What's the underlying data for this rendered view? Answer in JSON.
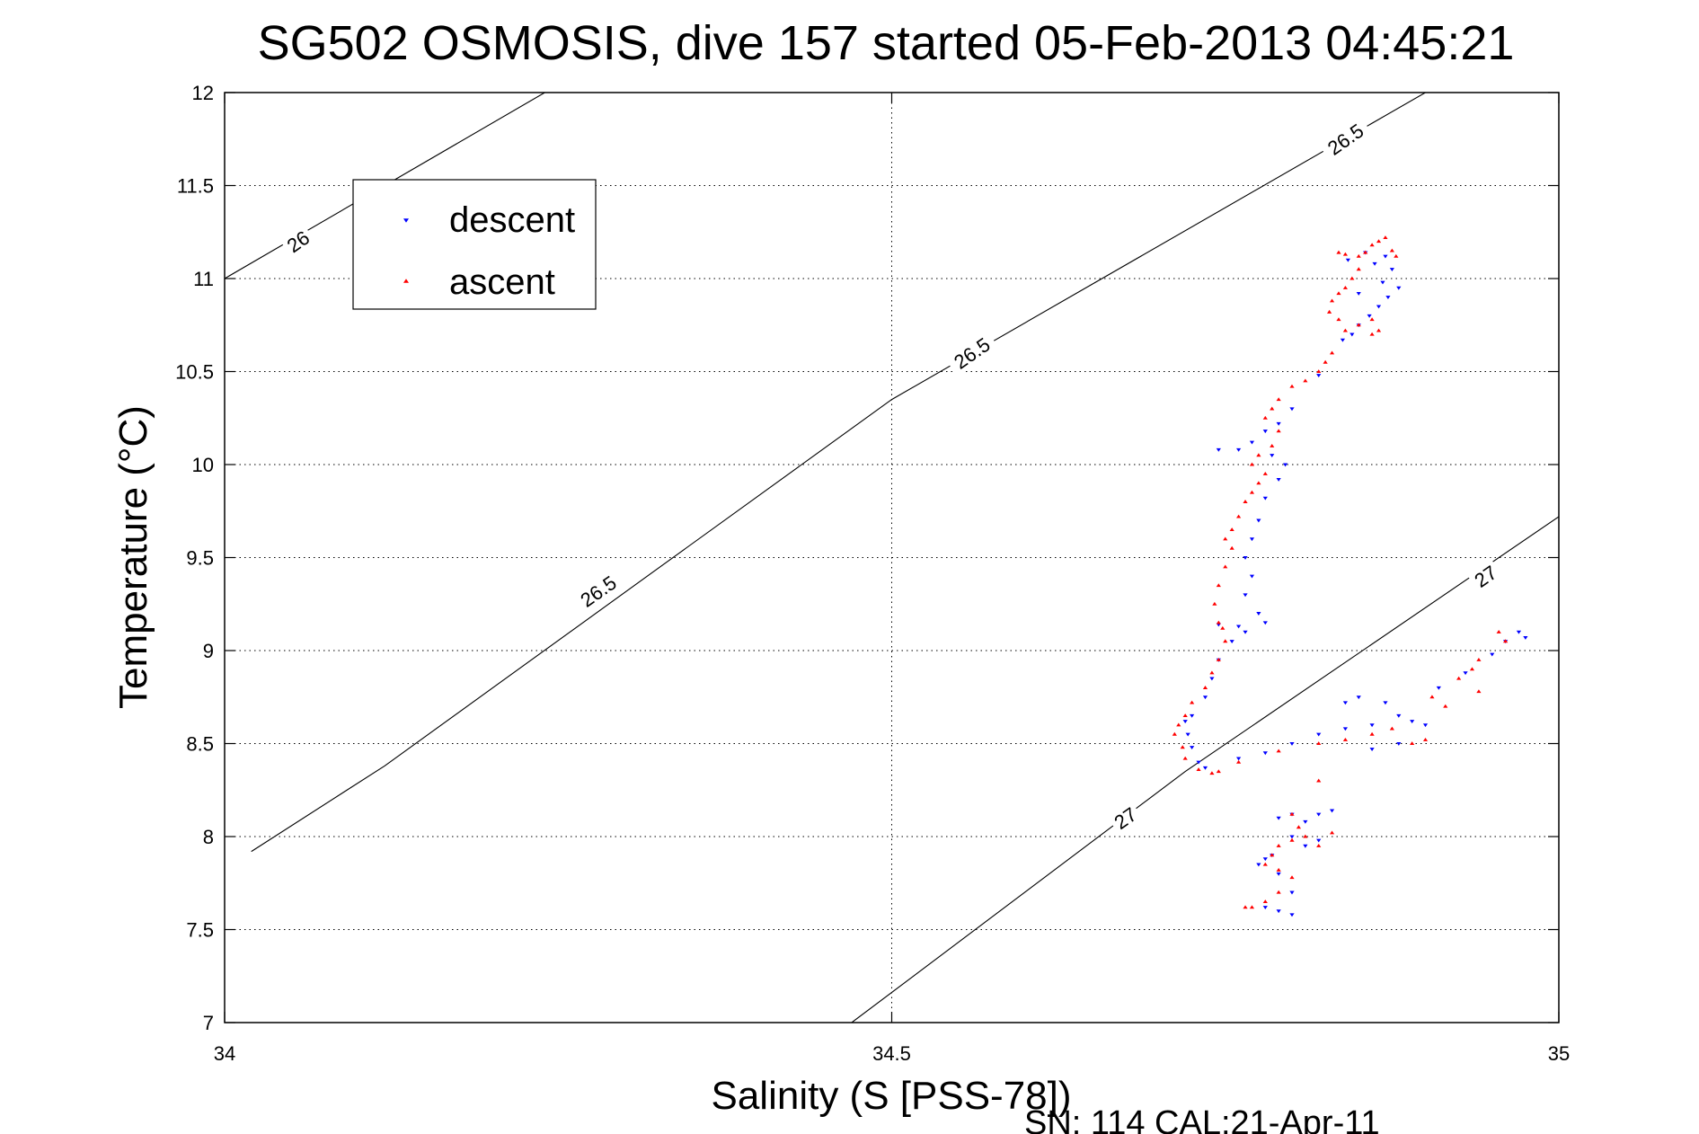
{
  "chart_data": {
    "type": "scatter",
    "title": "SG502 OSMOSIS, dive 157 started 05-Feb-2013 04:45:21",
    "xlabel": "Salinity (S [PSS-78])",
    "ylabel": "Temperature (°C)",
    "footer": "SN: 114  CAL:21-Apr-11",
    "xlim": [
      34,
      35
    ],
    "ylim": [
      7,
      12
    ],
    "x_ticks": [
      34,
      34.5,
      35
    ],
    "x_tick_labels": [
      "34",
      "34.5",
      "35"
    ],
    "y_ticks": [
      7,
      7.5,
      8,
      8.5,
      9,
      9.5,
      10,
      10.5,
      11,
      11.5,
      12
    ],
    "y_tick_labels": [
      "7",
      "7.5",
      "8",
      "8.5",
      "9",
      "9.5",
      "10",
      "10.5",
      "11",
      "11.5",
      "12"
    ],
    "grid": "dotted",
    "legend_position": "top-left",
    "density_contours": [
      {
        "label": "26",
        "points": [
          [
            34.0,
            11.0
          ],
          [
            34.24,
            12.0
          ]
        ]
      },
      {
        "label": "26.5",
        "points": [
          [
            34.02,
            7.92
          ],
          [
            34.12,
            8.38
          ],
          [
            34.5,
            10.35
          ],
          [
            34.9,
            12.0
          ]
        ]
      },
      {
        "label": "27",
        "points": [
          [
            34.47,
            7.0
          ],
          [
            34.72,
            8.35
          ],
          [
            35.0,
            9.72
          ]
        ]
      }
    ],
    "contour_labels": [
      {
        "text": "26",
        "x": 34.055,
        "y": 11.2
      },
      {
        "text": "26.5",
        "x": 34.84,
        "y": 11.75
      },
      {
        "text": "26.5",
        "x": 34.56,
        "y": 10.6
      },
      {
        "text": "26.5",
        "x": 34.28,
        "y": 9.32
      },
      {
        "text": "27",
        "x": 34.945,
        "y": 9.4
      },
      {
        "text": "27",
        "x": 34.675,
        "y": 8.1
      }
    ],
    "series": [
      {
        "name": "descent",
        "marker": "triangle-down",
        "color": "#0000ff",
        "points": [
          [
            34.87,
            11.12
          ],
          [
            34.875,
            11.05
          ],
          [
            34.868,
            10.98
          ],
          [
            34.88,
            10.95
          ],
          [
            34.872,
            10.9
          ],
          [
            34.865,
            10.85
          ],
          [
            34.858,
            10.8
          ],
          [
            34.85,
            10.75
          ],
          [
            34.845,
            10.7
          ],
          [
            34.838,
            10.67
          ],
          [
            34.842,
            11.1
          ],
          [
            34.855,
            11.14
          ],
          [
            34.862,
            11.08
          ],
          [
            34.85,
            10.92
          ],
          [
            34.82,
            10.48
          ],
          [
            34.8,
            10.3
          ],
          [
            34.79,
            10.22
          ],
          [
            34.78,
            10.18
          ],
          [
            34.77,
            10.12
          ],
          [
            34.76,
            10.08
          ],
          [
            34.745,
            10.08
          ],
          [
            34.785,
            10.05
          ],
          [
            34.795,
            10.0
          ],
          [
            34.79,
            9.92
          ],
          [
            34.78,
            9.82
          ],
          [
            34.775,
            9.7
          ],
          [
            34.77,
            9.6
          ],
          [
            34.765,
            9.5
          ],
          [
            34.77,
            9.4
          ],
          [
            34.765,
            9.3
          ],
          [
            34.775,
            9.2
          ],
          [
            34.78,
            9.15
          ],
          [
            34.76,
            9.13
          ],
          [
            34.745,
            9.14
          ],
          [
            34.765,
            9.1
          ],
          [
            34.755,
            9.05
          ],
          [
            34.745,
            8.95
          ],
          [
            34.74,
            8.85
          ],
          [
            34.735,
            8.75
          ],
          [
            34.725,
            8.65
          ],
          [
            34.72,
            8.62
          ],
          [
            34.722,
            8.55
          ],
          [
            34.725,
            8.48
          ],
          [
            34.73,
            8.4
          ],
          [
            34.735,
            8.37
          ],
          [
            34.76,
            8.42
          ],
          [
            34.78,
            8.45
          ],
          [
            34.8,
            8.5
          ],
          [
            34.82,
            8.55
          ],
          [
            34.84,
            8.58
          ],
          [
            34.86,
            8.6
          ],
          [
            34.88,
            8.65
          ],
          [
            34.84,
            8.72
          ],
          [
            34.85,
            8.75
          ],
          [
            34.87,
            8.72
          ],
          [
            34.89,
            8.62
          ],
          [
            34.9,
            8.6
          ],
          [
            34.91,
            8.8
          ],
          [
            34.93,
            8.88
          ],
          [
            34.95,
            8.98
          ],
          [
            34.96,
            9.05
          ],
          [
            34.97,
            9.1
          ],
          [
            34.975,
            9.07
          ],
          [
            34.88,
            8.5
          ],
          [
            34.86,
            8.47
          ],
          [
            34.79,
            8.1
          ],
          [
            34.8,
            8.12
          ],
          [
            34.81,
            8.08
          ],
          [
            34.82,
            8.12
          ],
          [
            34.83,
            8.14
          ],
          [
            34.8,
            8.0
          ],
          [
            34.82,
            7.98
          ],
          [
            34.81,
            7.95
          ],
          [
            34.78,
            7.88
          ],
          [
            34.775,
            7.85
          ],
          [
            34.79,
            7.8
          ],
          [
            34.8,
            7.7
          ],
          [
            34.78,
            7.62
          ],
          [
            34.79,
            7.6
          ],
          [
            34.8,
            7.58
          ],
          [
            34.785,
            7.9
          ]
        ]
      },
      {
        "name": "ascent",
        "marker": "triangle-up",
        "color": "#ff0000",
        "points": [
          [
            34.855,
            11.14
          ],
          [
            34.86,
            11.18
          ],
          [
            34.865,
            11.2
          ],
          [
            34.87,
            11.22
          ],
          [
            34.875,
            11.15
          ],
          [
            34.878,
            11.12
          ],
          [
            34.85,
            11.12
          ],
          [
            34.84,
            11.13
          ],
          [
            34.835,
            11.14
          ],
          [
            34.85,
            11.05
          ],
          [
            34.845,
            11.0
          ],
          [
            34.84,
            10.95
          ],
          [
            34.835,
            10.92
          ],
          [
            34.83,
            10.88
          ],
          [
            34.828,
            10.82
          ],
          [
            34.835,
            10.78
          ],
          [
            34.84,
            10.72
          ],
          [
            34.85,
            10.75
          ],
          [
            34.86,
            10.78
          ],
          [
            34.865,
            10.72
          ],
          [
            34.86,
            10.7
          ],
          [
            34.83,
            10.6
          ],
          [
            34.825,
            10.55
          ],
          [
            34.82,
            10.5
          ],
          [
            34.81,
            10.45
          ],
          [
            34.8,
            10.42
          ],
          [
            34.79,
            10.35
          ],
          [
            34.785,
            10.3
          ],
          [
            34.78,
            10.25
          ],
          [
            34.79,
            10.18
          ],
          [
            34.785,
            10.1
          ],
          [
            34.775,
            10.05
          ],
          [
            34.77,
            10.0
          ],
          [
            34.78,
            9.95
          ],
          [
            34.775,
            9.9
          ],
          [
            34.77,
            9.85
          ],
          [
            34.765,
            9.8
          ],
          [
            34.76,
            9.72
          ],
          [
            34.755,
            9.65
          ],
          [
            34.75,
            9.6
          ],
          [
            34.755,
            9.55
          ],
          [
            34.75,
            9.45
          ],
          [
            34.745,
            9.35
          ],
          [
            34.742,
            9.25
          ],
          [
            34.745,
            9.15
          ],
          [
            34.748,
            9.12
          ],
          [
            34.75,
            9.05
          ],
          [
            34.745,
            8.95
          ],
          [
            34.74,
            8.88
          ],
          [
            34.735,
            8.8
          ],
          [
            34.725,
            8.72
          ],
          [
            34.72,
            8.65
          ],
          [
            34.715,
            8.6
          ],
          [
            34.712,
            8.55
          ],
          [
            34.718,
            8.48
          ],
          [
            34.72,
            8.42
          ],
          [
            34.73,
            8.36
          ],
          [
            34.74,
            8.34
          ],
          [
            34.745,
            8.35
          ],
          [
            34.76,
            8.4
          ],
          [
            34.79,
            8.46
          ],
          [
            34.82,
            8.5
          ],
          [
            34.84,
            8.52
          ],
          [
            34.86,
            8.55
          ],
          [
            34.875,
            8.58
          ],
          [
            34.89,
            8.5
          ],
          [
            34.9,
            8.52
          ],
          [
            34.905,
            8.75
          ],
          [
            34.915,
            8.7
          ],
          [
            34.925,
            8.85
          ],
          [
            34.935,
            8.9
          ],
          [
            34.94,
            8.95
          ],
          [
            34.955,
            9.1
          ],
          [
            34.96,
            9.05
          ],
          [
            34.94,
            8.78
          ],
          [
            34.82,
            8.3
          ],
          [
            34.8,
            8.12
          ],
          [
            34.805,
            8.05
          ],
          [
            34.81,
            8.0
          ],
          [
            34.8,
            7.98
          ],
          [
            34.79,
            7.95
          ],
          [
            34.785,
            7.9
          ],
          [
            34.78,
            7.85
          ],
          [
            34.79,
            7.82
          ],
          [
            34.8,
            7.78
          ],
          [
            34.79,
            7.7
          ],
          [
            34.78,
            7.65
          ],
          [
            34.77,
            7.62
          ],
          [
            34.765,
            7.62
          ],
          [
            34.82,
            7.95
          ],
          [
            34.83,
            8.02
          ]
        ]
      }
    ]
  }
}
